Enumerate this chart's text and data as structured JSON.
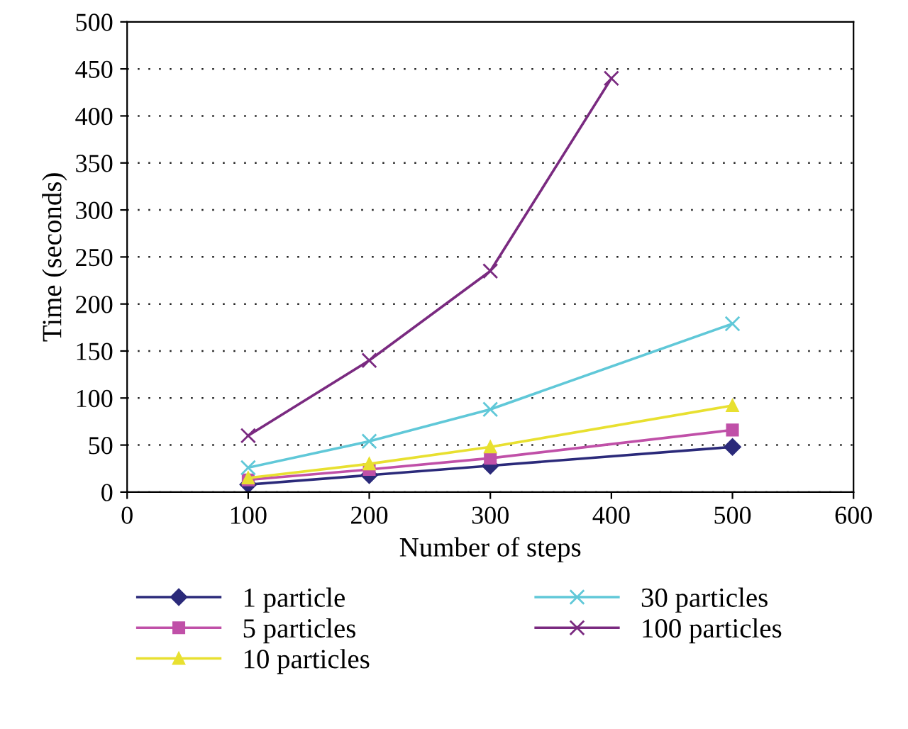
{
  "chart_data": {
    "type": "line",
    "xlabel": "Number of steps",
    "ylabel": "Time (seconds)",
    "xlim": [
      0,
      600
    ],
    "xticks": [
      0,
      100,
      200,
      300,
      400,
      500,
      600
    ],
    "ylim": [
      0,
      500
    ],
    "yticks": [
      0,
      50,
      100,
      150,
      200,
      250,
      300,
      350,
      400,
      450,
      500
    ],
    "grid": "y",
    "legend": "bottom",
    "series": [
      {
        "name": "1 particle",
        "color": "#2b2a7a",
        "marker": "diamond",
        "x": [
          100,
          200,
          300,
          500
        ],
        "values": [
          8,
          18,
          28,
          48
        ]
      },
      {
        "name": "5 particles",
        "color": "#c050a8",
        "marker": "square",
        "x": [
          100,
          200,
          300,
          500
        ],
        "values": [
          13,
          24,
          36,
          66
        ]
      },
      {
        "name": "10 particles",
        "color": "#e8e030",
        "marker": "triangle",
        "x": [
          100,
          200,
          300,
          500
        ],
        "values": [
          15,
          30,
          48,
          92
        ]
      },
      {
        "name": "30 particles",
        "color": "#60c8d8",
        "marker": "cross",
        "x": [
          100,
          200,
          300,
          500
        ],
        "values": [
          26,
          54,
          88,
          179
        ]
      },
      {
        "name": "100 particles",
        "color": "#7a2a80",
        "marker": "cross",
        "x": [
          100,
          200,
          300,
          400
        ],
        "values": [
          60,
          140,
          235,
          440
        ]
      }
    ]
  }
}
